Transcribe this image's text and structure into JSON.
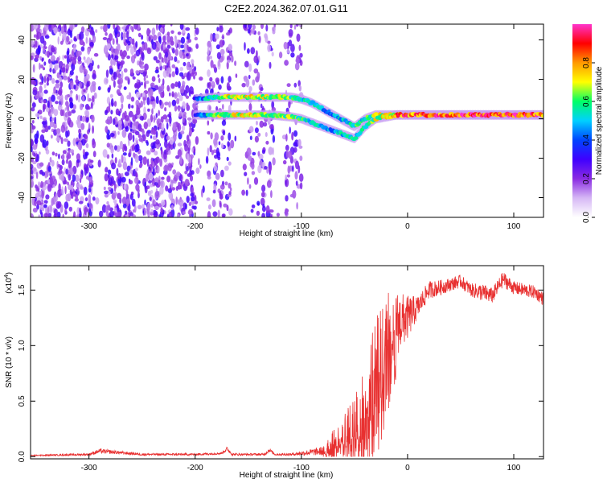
{
  "title": "C2E2.2024.362.07.01.G11",
  "chart_data": [
    {
      "type": "heatmap",
      "xlabel": "Height of straight line (km)",
      "ylabel": "Frequency (Hz)",
      "xlim": [
        -355,
        128
      ],
      "ylim": [
        -50,
        48
      ],
      "xticks": [
        -300,
        -200,
        -100,
        0,
        100
      ],
      "xtick_labels": [
        "-300",
        "-200",
        "-100",
        "0",
        "100"
      ],
      "yticks": [
        -40,
        -20,
        0,
        20,
        40
      ],
      "ytick_labels": [
        "-40",
        "-20",
        "0",
        "20",
        "40"
      ],
      "colorbar": {
        "label": "Normalized spectral amplitude",
        "range": [
          0,
          1
        ],
        "ticks": [
          0.0,
          0.2,
          0.4,
          0.6,
          0.8
        ],
        "tick_labels": [
          "0.0",
          "0.2",
          "0.4",
          "0.6",
          "0.8"
        ],
        "colormap": [
          "#ffffff",
          "#d6b8f5",
          "#8a2be2",
          "#3f00ff",
          "#0044ff",
          "#00d0ff",
          "#00ff66",
          "#ffff00",
          "#ff9900",
          "#ff0000",
          "#ff33cc"
        ]
      },
      "signal_track": {
        "x": [
          -200,
          -180,
          -150,
          -130,
          -110,
          -100,
          -90,
          -80,
          -70,
          -60,
          -50,
          -40,
          -30,
          -20,
          -10,
          0,
          50,
          100,
          128
        ],
        "y_upper": [
          10,
          11,
          11,
          11,
          11,
          10,
          8,
          5,
          2,
          -1,
          -4,
          0,
          2,
          2,
          2,
          2,
          2,
          2,
          2
        ],
        "y_lower": [
          2,
          2,
          2,
          2,
          1,
          0,
          -2,
          -4,
          -6,
          -8,
          -10,
          -4,
          0,
          1,
          2,
          2,
          2,
          2,
          2
        ],
        "amplitude": [
          0.35,
          0.7,
          0.75,
          0.7,
          0.65,
          0.6,
          0.55,
          0.5,
          0.5,
          0.55,
          0.6,
          0.6,
          0.7,
          0.75,
          0.85,
          0.9,
          0.95,
          0.95,
          0.9
        ]
      },
      "noise_region_x": [
        -355,
        -100
      ],
      "gap_x": [
        -290,
        -193,
        -160,
        -120
      ]
    },
    {
      "type": "line",
      "xlabel": "Height of straight line (km)",
      "ylabel": "SNR (10 * v/v)",
      "scale_note": "(x10",
      "scale_exponent": "4",
      "xlim": [
        -355,
        128
      ],
      "ylim": [
        -0.02,
        1.72
      ],
      "xticks": [
        -300,
        -200,
        -100,
        0,
        100
      ],
      "xtick_labels": [
        "-300",
        "-200",
        "-100",
        "0",
        "100"
      ],
      "yticks": [
        0.0,
        0.5,
        1.0,
        1.5
      ],
      "ytick_labels": [
        "0.0",
        "0.5",
        "1.0",
        "1.5"
      ],
      "color": "#e83030",
      "series_envelope": {
        "x": [
          -355,
          -300,
          -290,
          -250,
          -200,
          -175,
          -170,
          -165,
          -150,
          -135,
          -130,
          -125,
          -110,
          -100,
          -80,
          -70,
          -60,
          -50,
          -40,
          -30,
          -20,
          -10,
          0,
          10,
          20,
          30,
          40,
          50,
          60,
          70,
          80,
          90,
          100,
          110,
          120,
          128
        ],
        "y": [
          0.01,
          0.02,
          0.05,
          0.02,
          0.02,
          0.03,
          0.07,
          0.02,
          0.02,
          0.02,
          0.06,
          0.02,
          0.02,
          0.03,
          0.05,
          0.12,
          0.2,
          0.3,
          0.45,
          0.7,
          1.05,
          1.2,
          1.25,
          1.35,
          1.5,
          1.52,
          1.55,
          1.58,
          1.5,
          1.48,
          1.45,
          1.6,
          1.52,
          1.5,
          1.48,
          1.42
        ],
        "spread": [
          0.005,
          0.01,
          0.02,
          0.01,
          0.01,
          0.01,
          0.02,
          0.01,
          0.01,
          0.01,
          0.02,
          0.01,
          0.01,
          0.02,
          0.04,
          0.12,
          0.18,
          0.28,
          0.4,
          0.55,
          0.45,
          0.3,
          0.2,
          0.1,
          0.08,
          0.07,
          0.06,
          0.06,
          0.06,
          0.08,
          0.07,
          0.07,
          0.06,
          0.06,
          0.06,
          0.06
        ]
      }
    }
  ]
}
